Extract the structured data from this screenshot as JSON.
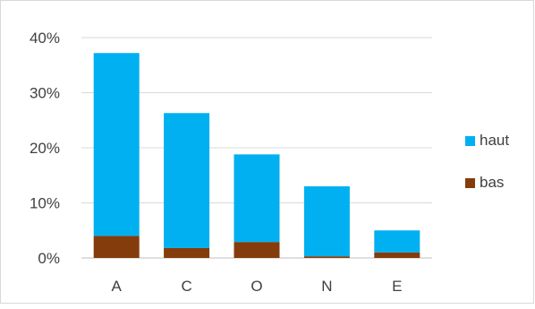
{
  "chart_data": {
    "type": "bar",
    "stacked": true,
    "categories": [
      "A",
      "C",
      "O",
      "N",
      "E"
    ],
    "series": [
      {
        "name": "bas",
        "color": "#843c0c",
        "values": [
          4.0,
          1.8,
          2.9,
          0.3,
          1.0
        ]
      },
      {
        "name": "haut",
        "color": "#00b0f0",
        "values": [
          33.2,
          24.5,
          15.9,
          12.7,
          4.0
        ]
      }
    ],
    "title": "",
    "xlabel": "",
    "ylabel": "",
    "ylim": [
      0,
      40
    ],
    "ytick_labels": [
      "0%",
      "10%",
      "20%",
      "30%",
      "40%"
    ],
    "grid": true,
    "legend": {
      "placement": "right",
      "order": [
        "haut",
        "bas"
      ]
    }
  }
}
